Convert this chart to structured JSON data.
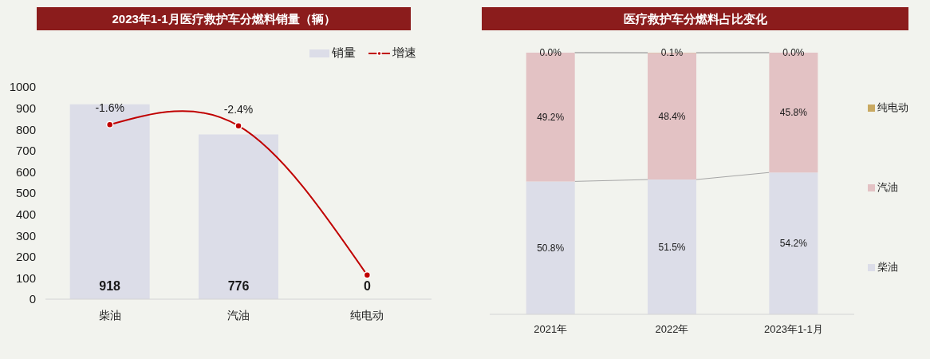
{
  "chart_data": [
    {
      "type": "bar",
      "title": "2023年1-1月医疗救护车分燃料销量（辆）",
      "categories": [
        "柴油",
        "汽油",
        "纯电动"
      ],
      "series": [
        {
          "name": "销量",
          "color": "#dcdde8",
          "values": [
            918,
            776,
            0
          ],
          "value_labels": [
            "918",
            "776",
            "0"
          ]
        },
        {
          "name": "增速",
          "type": "line",
          "axis": "y2",
          "color": "#c00000",
          "values": [
            -1.6,
            -2.4,
            -100
          ],
          "value_labels": [
            "-1.6%",
            "-2.4%",
            null
          ]
        }
      ],
      "ylim": [
        0,
        1000
      ],
      "yticks": [
        0,
        100,
        200,
        300,
        400,
        500,
        600,
        700,
        800,
        900,
        1000
      ],
      "marker": "circle",
      "legend": "top right"
    },
    {
      "type": "bar",
      "title": "医疗救护车分燃料占比变化",
      "categories": [
        "2021年",
        "2022年",
        "2023年1-1月"
      ],
      "stacked": true,
      "series": [
        {
          "name": "柴油",
          "color": "#dcdde8",
          "values": [
            50.8,
            51.5,
            54.2
          ],
          "value_labels": [
            "50.8%",
            "51.5%",
            "54.2%"
          ]
        },
        {
          "name": "汽油",
          "color": "#e3c2c4",
          "values": [
            49.2,
            48.4,
            45.8
          ],
          "value_labels": [
            "49.2%",
            "48.4%",
            "45.8%"
          ]
        },
        {
          "name": "纯电动",
          "color": "#c9a961",
          "values": [
            0.0,
            0.1,
            0.0
          ],
          "value_labels": [
            "0.0%",
            "0.1%",
            "0.0%"
          ]
        }
      ],
      "ylim": [
        0,
        100
      ],
      "tick_labels": "x",
      "legend": "right"
    }
  ]
}
